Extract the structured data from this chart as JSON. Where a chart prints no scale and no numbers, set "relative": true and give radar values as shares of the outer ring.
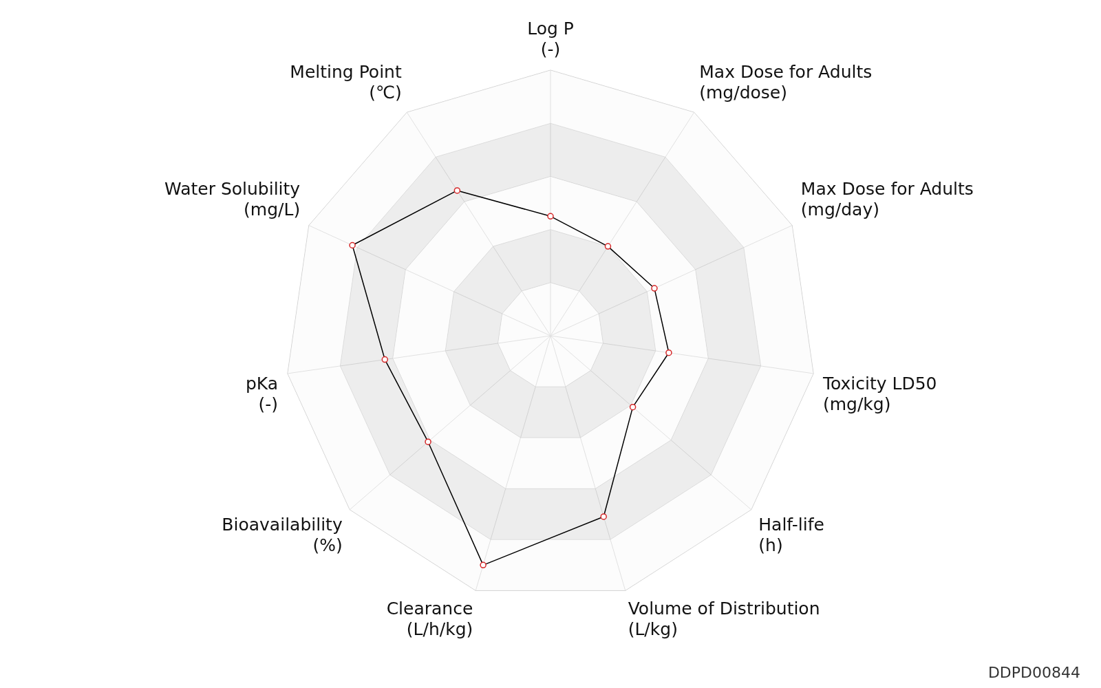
{
  "chart_data": {
    "type": "radar",
    "relative": true,
    "grid": true,
    "marker": "circle",
    "legend": false,
    "categories": [
      "Log P\n(-)",
      "Max Dose for Adults\n(mg/dose)",
      "Max Dose for Adults\n(mg/day)",
      "Toxicity LD50\n(mg/kg)",
      "Half-life\n(h)",
      "Volume of Distribution\n(L/kg)",
      "Clearance\n(L/h/kg)",
      "Bioavailability\n(%)",
      "pKa\n(-)",
      "Water Solubility\n(mg/L)",
      "Melting Point\n(℃)"
    ],
    "series": [
      {
        "color": "#000000",
        "values": [
          0.45,
          0.4,
          0.43,
          0.45,
          0.41,
          0.71,
          0.9,
          0.61,
          0.63,
          0.82,
          0.65
        ]
      }
    ],
    "annotations": [
      "DDPD00844"
    ]
  }
}
